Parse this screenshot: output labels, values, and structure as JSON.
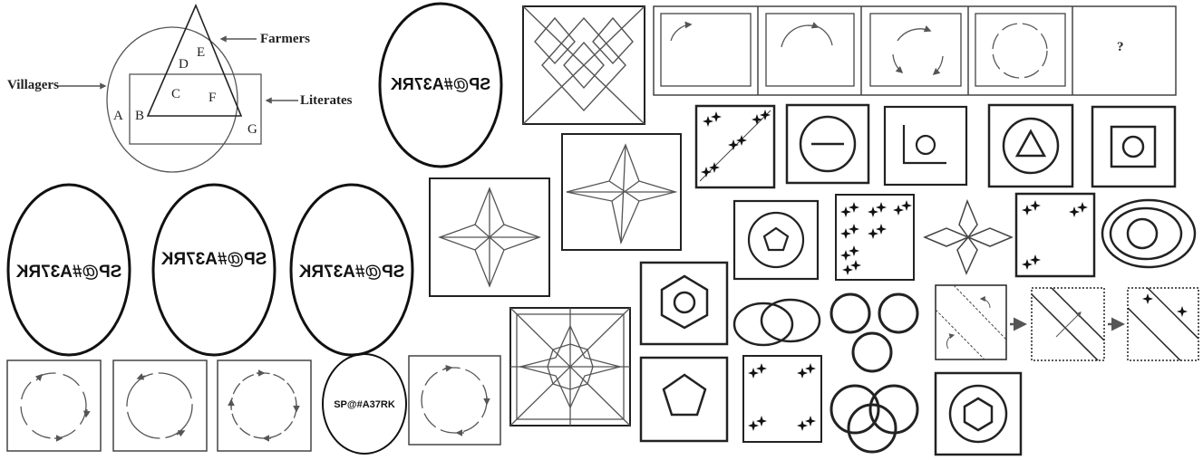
{
  "venn": {
    "villagers": "Villagers",
    "farmers": "Farmers",
    "literates": "Literates",
    "regions": [
      "A",
      "B",
      "C",
      "D",
      "E",
      "F",
      "G"
    ]
  },
  "question_mark": "?",
  "mirror_strings": [
    "SP@#A37RK",
    "SP@#A37RK",
    "SP@#A37RK",
    "SP@#A37RK",
    "SP@#A37RK",
    "SP@#A37RK"
  ],
  "colors": {
    "stroke": "#222222",
    "arrow": "#555555",
    "background": "#ffffff"
  }
}
